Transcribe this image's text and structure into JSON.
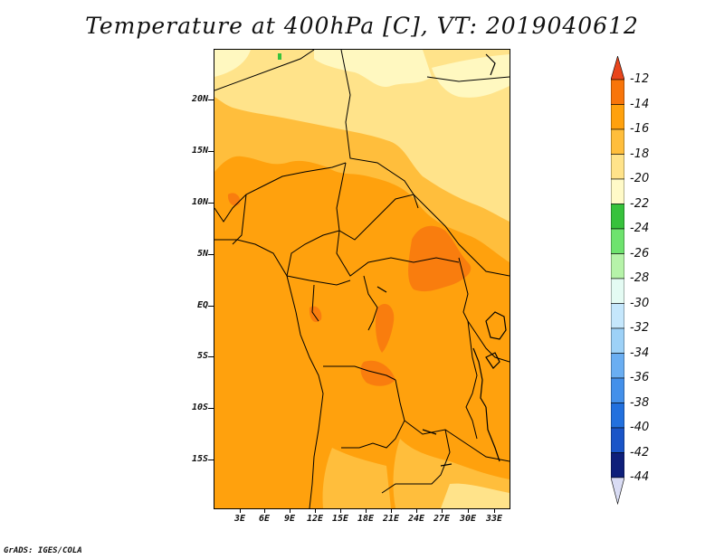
{
  "title": "Temperature at 400hPa [C], VT: 2019040612",
  "credit": "GrADS: IGES/COLA",
  "map": {
    "lat_labels": [
      "20N",
      "15N",
      "10N",
      "5N",
      "EQ",
      "5S",
      "10S",
      "15S"
    ],
    "lon_labels": [
      "3E",
      "6E",
      "9E",
      "12E",
      "15E",
      "18E",
      "21E",
      "24E",
      "27E",
      "30E",
      "33E"
    ],
    "field_colors": {
      "lt_minus20": "#fff8c0",
      "minus20_to_minus18": "#ffe38a",
      "minus18_to_minus16": "#ffbe3c",
      "minus16_to_minus14": "#ffa10d",
      "minus14_to_minus12": "#f97d0e"
    }
  },
  "colorbar": {
    "labels": [
      "-12",
      "-14",
      "-16",
      "-18",
      "-20",
      "-22",
      "-24",
      "-26",
      "-28",
      "-30",
      "-32",
      "-34",
      "-36",
      "-38",
      "-40",
      "-42",
      "-44"
    ],
    "colors_top_to_bottom": [
      "#e8451c",
      "#f8750a",
      "#ffa10d",
      "#ffbe3c",
      "#ffe38a",
      "#fffac8",
      "#37c23c",
      "#6ee36e",
      "#b6f3a9",
      "#e4fbf3",
      "#c5e7fc",
      "#9dd1f7",
      "#6aaef2",
      "#4490ea",
      "#2270de",
      "#1a55c8",
      "#0e1f7a",
      "#d9dcf4"
    ]
  }
}
